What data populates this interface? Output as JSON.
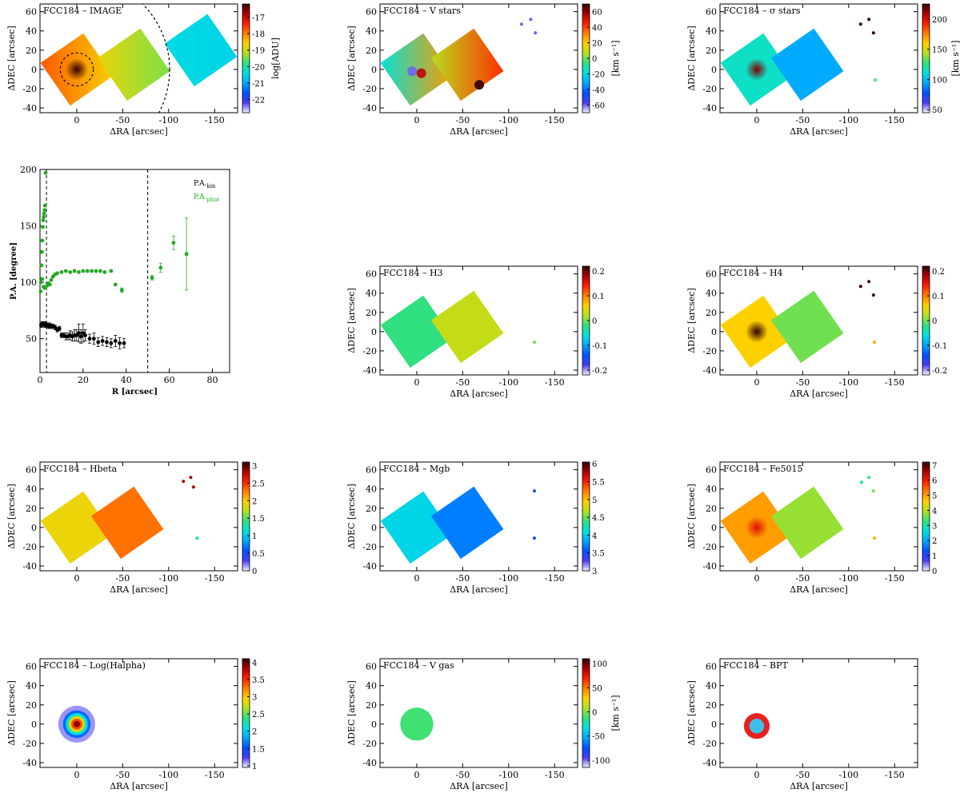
{
  "palette": {
    "jet": [
      "#f4f4ff",
      "#4a3cf0",
      "#0050ff",
      "#00a8ff",
      "#00e0e0",
      "#30e080",
      "#b0e020",
      "#ffd000",
      "#ff8000",
      "#ff2000",
      "#b00000",
      "#300000"
    ],
    "kin_color": "#000000",
    "phot_color": "#22aa22",
    "bpt_core": "#3ec0e8",
    "bpt_halo": "#e82020"
  },
  "chart_data": [
    {
      "id": "image",
      "type": "heatmap",
      "title": "FCC184 – IMAGE",
      "xlabel": "ΔRA [arcsec]",
      "ylabel": "ΔDEC [arcsec]",
      "xlim": [
        40,
        -175
      ],
      "ylim": [
        -45,
        68
      ],
      "xticks": [
        0,
        -50,
        -100,
        -150
      ],
      "yticks": [
        -40,
        -20,
        0,
        20,
        40,
        60
      ],
      "colorbar": {
        "label": "log[ADU]",
        "range": [
          -22.8,
          -16.2
        ],
        "ticks": [
          -17,
          -18,
          -19,
          -20,
          -21,
          -22
        ]
      },
      "fields": [
        {
          "center": [
            0,
            0
          ],
          "value": -18.2,
          "gradient": -0.9
        },
        {
          "center": [
            -62,
            5
          ],
          "value": -19.1,
          "gradient": -0.7
        },
        {
          "center": [
            -135,
            20
          ],
          "value": -20.5,
          "gradient": -0.1
        }
      ],
      "core": {
        "center": [
          0,
          0
        ],
        "peak": -16.2
      },
      "circles": [
        {
          "center": [
            0,
            0
          ],
          "radius": 18
        },
        {
          "center": [
            0,
            0
          ],
          "radius": 101
        }
      ]
    },
    {
      "id": "vstars",
      "type": "heatmap",
      "title": "FCC184 – V stars",
      "xlabel": "ΔRA [arcsec]",
      "ylabel": "ΔDEC [arcsec]",
      "xlim": [
        40,
        -175
      ],
      "ylim": [
        -45,
        68
      ],
      "xticks": [
        0,
        -50,
        -100,
        -150
      ],
      "yticks": [
        -40,
        -20,
        0,
        20,
        40,
        60
      ],
      "colorbar": {
        "label": "[km s⁻¹]",
        "range": [
          -70,
          70
        ],
        "ticks": [
          60,
          40,
          20,
          0,
          -20,
          -40,
          -60
        ]
      },
      "fields": [
        {
          "center": [
            0,
            0
          ],
          "value": 5,
          "gradient": 45
        },
        {
          "center": [
            -55,
            5
          ],
          "value": 25,
          "gradient": 35
        }
      ],
      "spots": [
        {
          "center": [
            5,
            -2
          ],
          "value": -60
        },
        {
          "center": [
            -5,
            -4
          ],
          "value": 55
        },
        {
          "center": [
            -68,
            -16
          ],
          "value": 70
        }
      ],
      "dots": [
        {
          "x": -114,
          "y": 47,
          "value": -60
        },
        {
          "x": -124,
          "y": 52,
          "value": -60
        },
        {
          "x": -129,
          "y": 38,
          "value": -60
        }
      ]
    },
    {
      "id": "sigma",
      "type": "heatmap",
      "title": "FCC184 – σ stars",
      "xlabel": "ΔRA [arcsec]",
      "ylabel": "ΔDEC [arcsec]",
      "xlim": [
        40,
        -175
      ],
      "ylim": [
        -45,
        68
      ],
      "xticks": [
        0,
        -50,
        -100,
        -150
      ],
      "yticks": [
        -40,
        -20,
        0,
        20,
        40,
        60
      ],
      "colorbar": {
        "label": "[km s⁻¹]",
        "range": [
          45,
          225
        ],
        "ticks": [
          200,
          150,
          100,
          50
        ]
      },
      "fields": [
        {
          "center": [
            0,
            0
          ],
          "value": 115,
          "gradient": 0
        },
        {
          "center": [
            -55,
            5
          ],
          "value": 95,
          "gradient": 0
        }
      ],
      "core": {
        "center": [
          0,
          0
        ],
        "peak": 215
      },
      "dots": [
        {
          "x": -113,
          "y": 47,
          "value": 225
        },
        {
          "x": -122,
          "y": 52,
          "value": 225
        },
        {
          "x": -127,
          "y": 38,
          "value": 225
        },
        {
          "x": -129,
          "y": -11,
          "value": 130
        }
      ]
    },
    {
      "id": "pa",
      "type": "scatter",
      "xlabel": "R [arcsec]",
      "ylabel": "P.A. [degree]",
      "xlim": [
        0,
        88
      ],
      "ylim": [
        20,
        200
      ],
      "xticks": [
        0,
        20,
        40,
        60,
        80
      ],
      "yticks": [
        50,
        100,
        150,
        200
      ],
      "vlines": [
        3,
        50
      ],
      "legend": {
        "position": "top-right",
        "entries": [
          {
            "label": "P.A.",
            "sub": "kin",
            "color": "#000000"
          },
          {
            "label": "P.A.",
            "sub": "phot",
            "color": "#22aa22"
          }
        ]
      },
      "series": [
        {
          "name": "kin",
          "x": [
            0.5,
            1.0,
            1.5,
            2.0,
            2.5,
            3.0,
            3.5,
            4.0,
            4.5,
            5.0,
            6.0,
            7.0,
            8.0,
            9.0,
            10.0,
            11.0,
            12.0,
            13.0,
            14.0,
            15.0,
            16.0,
            17.0,
            18.0,
            19.0,
            20.0,
            21.0,
            23.0,
            25.0,
            27.0,
            29.0,
            31.0,
            33.0,
            35.0,
            37.0,
            39.0
          ],
          "y": [
            62,
            63,
            63,
            62,
            63,
            62,
            62,
            61,
            62,
            61,
            61,
            60,
            58,
            59,
            53,
            53,
            52,
            52,
            53,
            52,
            53,
            53,
            55,
            52,
            55,
            53,
            50,
            50,
            47,
            48,
            47,
            46,
            48,
            46,
            46
          ],
          "err": [
            2,
            2,
            2,
            2,
            2,
            2,
            2,
            2,
            2,
            2,
            2,
            2,
            2,
            2,
            2,
            2,
            3,
            3,
            4,
            4,
            5,
            5,
            8,
            6,
            8,
            5,
            4,
            5,
            4,
            4,
            4,
            4,
            5,
            5,
            4
          ]
        },
        {
          "name": "phot",
          "x": [
            0.3,
            0.5,
            0.7,
            0.9,
            1.1,
            1.3,
            1.5,
            1.7,
            1.9,
            2.1,
            2.3,
            2.6,
            1.0,
            1.6,
            2.2,
            3.3,
            4.0,
            4.6,
            5.2,
            6.0,
            7.0,
            8.0,
            10.0,
            12.0,
            14.0,
            16.0,
            18.0,
            20.0,
            22.0,
            24.0,
            26.0,
            28.0,
            30.0,
            33.0,
            35.0,
            38.0,
            52.0,
            56.0,
            62.0,
            68.0
          ],
          "y": [
            92,
            100,
            115,
            127,
            137,
            149,
            155,
            158,
            161,
            164,
            168,
            197,
            103,
            96,
            95,
            97,
            99,
            98,
            102,
            105,
            107,
            108,
            109,
            110,
            109,
            110,
            109,
            110,
            110,
            110,
            110,
            110,
            109,
            110,
            98,
            93,
            104,
            113,
            135,
            125
          ],
          "err": [
            0,
            0,
            0,
            0,
            0,
            0,
            0,
            0,
            0,
            0,
            0,
            0,
            0,
            0,
            0,
            0,
            0,
            0,
            0,
            0,
            0,
            0,
            0,
            0,
            0,
            0,
            0,
            0,
            0,
            0,
            0,
            0,
            0,
            0,
            0,
            2,
            2,
            4,
            6,
            32
          ]
        }
      ]
    },
    {
      "id": "h3",
      "type": "heatmap",
      "title": "FCC184 – H3",
      "xlabel": "ΔRA [arcsec]",
      "ylabel": "ΔDEC [arcsec]",
      "xlim": [
        40,
        -175
      ],
      "ylim": [
        -45,
        68
      ],
      "xticks": [
        0,
        -50,
        -100,
        -150
      ],
      "yticks": [
        -40,
        -20,
        0,
        20,
        40,
        60
      ],
      "colorbar": {
        "label": "",
        "range": [
          -0.22,
          0.22
        ],
        "ticks": [
          0.2,
          0.1,
          0.0,
          -0.1,
          -0.2
        ]
      },
      "fields": [
        {
          "center": [
            0,
            0
          ],
          "value": -0.02,
          "gradient": 0
        },
        {
          "center": [
            -55,
            5
          ],
          "value": 0.03,
          "gradient": 0
        }
      ],
      "dots": [
        {
          "x": -128,
          "y": -11,
          "value": 0.0
        }
      ]
    },
    {
      "id": "h4",
      "type": "heatmap",
      "title": "FCC184 – H4",
      "xlabel": "ΔRA [arcsec]",
      "ylabel": "ΔDEC [arcsec]",
      "xlim": [
        40,
        -175
      ],
      "ylim": [
        -45,
        68
      ],
      "xticks": [
        0,
        -50,
        -100,
        -150
      ],
      "yticks": [
        -40,
        -20,
        0,
        20,
        40,
        60
      ],
      "colorbar": {
        "label": "",
        "range": [
          -0.22,
          0.22
        ],
        "ticks": [
          0.2,
          0.1,
          0.0,
          -0.1,
          -0.2
        ]
      },
      "fields": [
        {
          "center": [
            0,
            0
          ],
          "value": 0.06,
          "gradient": 0
        },
        {
          "center": [
            -55,
            5
          ],
          "value": 0.0,
          "gradient": 0
        }
      ],
      "core": {
        "center": [
          0,
          0
        ],
        "peak": 0.22
      },
      "dots": [
        {
          "x": -113,
          "y": 47,
          "value": 0.22
        },
        {
          "x": -122,
          "y": 52,
          "value": 0.22
        },
        {
          "x": -127,
          "y": 38,
          "value": 0.22
        },
        {
          "x": -128,
          "y": -11,
          "value": 0.08
        }
      ]
    },
    {
      "id": "hbeta",
      "type": "heatmap",
      "title": "FCC184 – Hbeta",
      "xlabel": "ΔRA [arcsec]",
      "ylabel": "ΔDEC [arcsec]",
      "xlim": [
        40,
        -175
      ],
      "ylim": [
        -45,
        68
      ],
      "xticks": [
        0,
        -50,
        -100,
        -150
      ],
      "yticks": [
        -40,
        -20,
        0,
        20,
        40,
        60
      ],
      "colorbar": {
        "label": "",
        "range": [
          0,
          3.1
        ],
        "ticks": [
          3.0,
          2.5,
          2.0,
          1.5,
          1.0,
          0.5,
          0.0
        ]
      },
      "fields": [
        {
          "center": [
            0,
            0
          ],
          "value": 1.9,
          "gradient": 0
        },
        {
          "center": [
            -55,
            5
          ],
          "value": 2.3,
          "gradient": 0
        }
      ],
      "dots": [
        {
          "x": -116,
          "y": 48,
          "value": 2.8
        },
        {
          "x": -124,
          "y": 52,
          "value": 2.8
        },
        {
          "x": -127,
          "y": 42,
          "value": 2.8
        },
        {
          "x": -131,
          "y": -11,
          "value": 1.3
        }
      ]
    },
    {
      "id": "mgb",
      "type": "heatmap",
      "title": "FCC184 – Mgb",
      "xlabel": "ΔRA [arcsec]",
      "ylabel": "ΔDEC [arcsec]",
      "xlim": [
        40,
        -175
      ],
      "ylim": [
        -45,
        68
      ],
      "xticks": [
        0,
        -50,
        -100,
        -150
      ],
      "yticks": [
        -40,
        -20,
        0,
        20,
        40,
        60
      ],
      "colorbar": {
        "label": "",
        "range": [
          3.0,
          6.05
        ],
        "ticks": [
          6.0,
          5.5,
          5.0,
          4.5,
          4.0,
          3.5,
          3.0
        ]
      },
      "fields": [
        {
          "center": [
            0,
            0
          ],
          "value": 4.05,
          "gradient": 0
        },
        {
          "center": [
            -55,
            5
          ],
          "value": 3.7,
          "gradient": 0
        }
      ],
      "dots": [
        {
          "x": -128,
          "y": 38,
          "value": 3.5
        },
        {
          "x": -128,
          "y": -11,
          "value": 3.5
        }
      ]
    },
    {
      "id": "fe5015",
      "type": "heatmap",
      "title": "FCC184 – Fe5015",
      "xlabel": "ΔRA [arcsec]",
      "ylabel": "ΔDEC [arcsec]",
      "xlim": [
        40,
        -175
      ],
      "ylim": [
        -45,
        68
      ],
      "xticks": [
        0,
        -50,
        -100,
        -150
      ],
      "yticks": [
        -40,
        -20,
        0,
        20,
        40,
        60
      ],
      "colorbar": {
        "label": "",
        "range": [
          0,
          7.2
        ],
        "ticks": [
          7,
          6,
          5,
          4,
          3,
          2,
          1,
          0
        ]
      },
      "fields": [
        {
          "center": [
            0,
            0
          ],
          "value": 5.0,
          "gradient": 0
        },
        {
          "center": [
            -55,
            5
          ],
          "value": 3.8,
          "gradient": 0
        }
      ],
      "core": {
        "center": [
          0,
          0
        ],
        "peak": 6.2
      },
      "dots": [
        {
          "x": -114,
          "y": 47,
          "value": 3.0
        },
        {
          "x": -122,
          "y": 52,
          "value": 3.3
        },
        {
          "x": -127,
          "y": 38,
          "value": 3.6
        },
        {
          "x": -128,
          "y": -11,
          "value": 4.8
        }
      ]
    },
    {
      "id": "halpha",
      "type": "heatmap",
      "title": "FCC184 – Log(Halpha)",
      "xlabel": "ΔRA [arcsec]",
      "ylabel": "ΔDEC [arcsec]",
      "xlim": [
        40,
        -175
      ],
      "ylim": [
        -45,
        68
      ],
      "xticks": [
        0,
        -50,
        -100,
        -150
      ],
      "yticks": [
        -40,
        -20,
        0,
        20,
        40,
        60
      ],
      "colorbar": {
        "label": "",
        "range": [
          0.95,
          4.1
        ],
        "ticks": [
          4.0,
          3.5,
          3.0,
          2.5,
          2.0,
          1.5,
          1.0
        ]
      },
      "blob": {
        "center": [
          0,
          0
        ],
        "rings": [
          {
            "r": 20,
            "value": 1.1
          },
          {
            "r": 15,
            "value": 1.6
          },
          {
            "r": 12,
            "value": 2.1
          },
          {
            "r": 9,
            "value": 2.8
          },
          {
            "r": 6,
            "value": 3.4
          },
          {
            "r": 3.5,
            "value": 3.9
          }
        ]
      }
    },
    {
      "id": "vgas",
      "type": "heatmap",
      "title": "FCC184 – V gas",
      "xlabel": "ΔRA [arcsec]",
      "ylabel": "ΔDEC [arcsec]",
      "xlim": [
        40,
        -175
      ],
      "ylim": [
        -45,
        68
      ],
      "xticks": [
        0,
        -50,
        -100,
        -150
      ],
      "yticks": [
        -40,
        -20,
        0,
        20,
        40,
        60
      ],
      "colorbar": {
        "label": "[km s⁻¹]",
        "range": [
          -115,
          110
        ],
        "ticks": [
          100,
          50,
          0,
          -50,
          -100
        ]
      },
      "blob": {
        "center": [
          0,
          0
        ],
        "rings": [
          {
            "r": 18,
            "value": -10
          }
        ]
      },
      "spots": [
        {
          "center": [
            6,
            2
          ],
          "value": -95
        },
        {
          "center": [
            -5,
            -3
          ],
          "value": 60
        },
        {
          "center": [
            -10,
            -8
          ],
          "value": 10
        }
      ]
    },
    {
      "id": "bpt",
      "type": "heatmap",
      "title": "FCC184 – BPT",
      "xlabel": "ΔRA [arcsec]",
      "ylabel": "ΔDEC [arcsec]",
      "xlim": [
        40,
        -175
      ],
      "ylim": [
        -45,
        68
      ],
      "xticks": [
        0,
        -50,
        -100,
        -150
      ],
      "yticks": [
        -40,
        -20,
        0,
        20,
        40,
        60
      ],
      "blob": {
        "center": [
          0,
          -2
        ],
        "rings": [
          {
            "r": 14,
            "value": "halo"
          },
          {
            "r": 8,
            "value": "core"
          }
        ]
      }
    }
  ]
}
